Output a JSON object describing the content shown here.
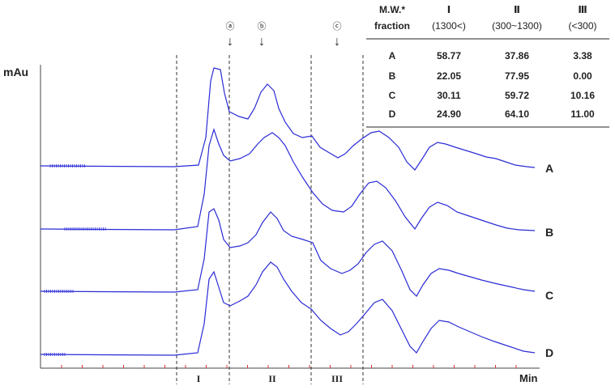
{
  "chart_data": {
    "type": "line",
    "ylabel": "mAu",
    "xlabel": "Min",
    "series": [
      {
        "name": "A"
      },
      {
        "name": "B"
      },
      {
        "name": "C"
      },
      {
        "name": "D"
      }
    ],
    "fraction_labels": [
      "I",
      "II",
      "III"
    ],
    "peak_markers": [
      {
        "label": "ⓐ",
        "arrow": "↓"
      },
      {
        "label": "ⓑ",
        "arrow": "↓"
      },
      {
        "label": "ⓒ",
        "arrow": "↓"
      }
    ],
    "table": {
      "header_first": [
        "M.W.*",
        "fraction"
      ],
      "columns": [
        {
          "title": "Ⅰ",
          "sub": "(1300<)"
        },
        {
          "title": "Ⅱ",
          "sub": "(300~1300)"
        },
        {
          "title": "Ⅲ",
          "sub": "(<300)"
        }
      ],
      "rows": [
        {
          "label": "A",
          "values": [
            "58.77",
            "37.86",
            "3.38"
          ]
        },
        {
          "label": "B",
          "values": [
            "22.05",
            "77.95",
            "0.00"
          ]
        },
        {
          "label": "C",
          "values": [
            "30.11",
            "59.72",
            "10.16"
          ]
        },
        {
          "label": "D",
          "values": [
            "24.90",
            "64.10",
            "11.00"
          ]
        }
      ]
    },
    "colors": {
      "trace": "#2b2bd6",
      "tick": "#e03030",
      "axis": "#444444",
      "divider": "#333333"
    }
  }
}
